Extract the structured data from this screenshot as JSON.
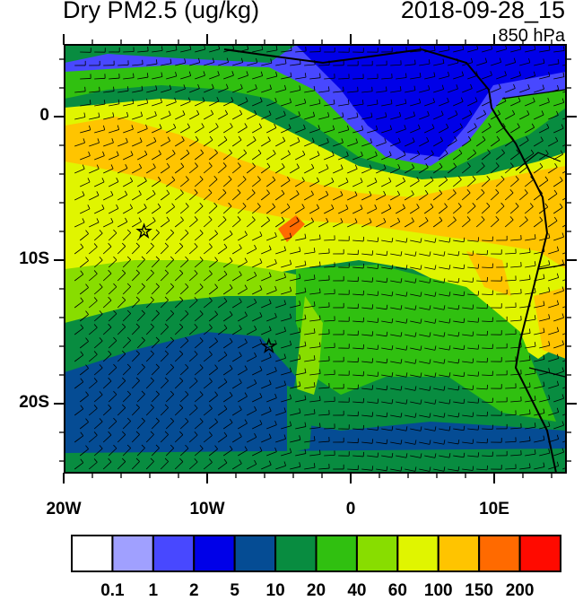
{
  "header": {
    "title": "Dry PM2.5 (ug/kg)",
    "datetime": "2018-09-28_15",
    "level": "850 hPa"
  },
  "axes": {
    "x_labels": [
      "20W",
      "10W",
      "0",
      "10E"
    ],
    "x_values_deg": [
      -20,
      -10,
      0,
      10
    ],
    "y_labels": [
      "0",
      "10S",
      "20S"
    ],
    "y_values_deg": [
      0,
      -10,
      -20
    ],
    "lon_range": [
      -20,
      15
    ],
    "lat_range": [
      -25,
      5
    ]
  },
  "colorbar": {
    "colors": [
      "#ffffff",
      "#a0a0ff",
      "#4848ff",
      "#0000e8",
      "#054c94",
      "#088c40",
      "#30c010",
      "#88dd00",
      "#e0f500",
      "#ffc400",
      "#ff6a00",
      "#ff0a00"
    ],
    "labels": [
      "0.1",
      "1",
      "2",
      "5",
      "10",
      "20",
      "40",
      "60",
      "100",
      "150",
      "200"
    ]
  },
  "markers": [
    {
      "lon": -14.4,
      "lat": -8.0,
      "symbol": "star"
    },
    {
      "lon": -5.7,
      "lat": -16.0,
      "symbol": "star"
    }
  ]
}
